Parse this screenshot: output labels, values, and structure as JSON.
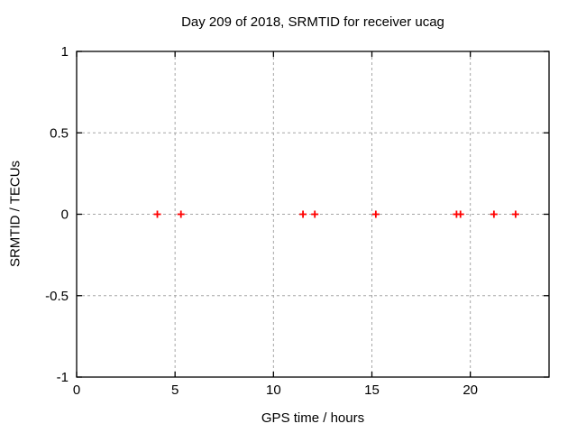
{
  "chart_data": {
    "type": "scatter",
    "title": "Day 209 of 2018, SRMTID for receiver ucag",
    "xlabel": "GPS time / hours",
    "ylabel": "SRMTID / TECUs",
    "xlim": [
      0,
      24
    ],
    "ylim": [
      -1,
      1
    ],
    "x_ticks": [
      0,
      5,
      10,
      15,
      20
    ],
    "y_ticks": [
      -1,
      -0.5,
      0,
      0.5,
      1
    ],
    "grid": true,
    "legend": "none",
    "marker": {
      "shape": "plus",
      "color": "#ff0000"
    },
    "series": [
      {
        "name": "SRMTID",
        "x": [
          4.1,
          5.3,
          11.5,
          12.1,
          15.2,
          19.3,
          19.5,
          21.2,
          22.3
        ],
        "y": [
          0,
          0,
          0,
          0,
          0,
          0,
          0,
          0,
          0
        ]
      }
    ]
  }
}
